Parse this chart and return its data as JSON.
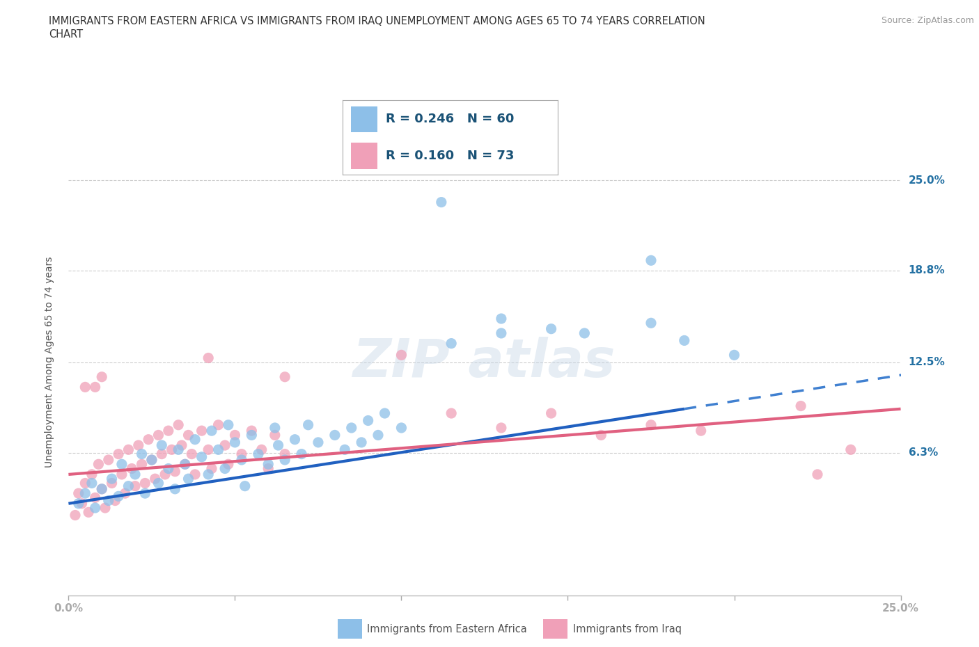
{
  "title_line1": "IMMIGRANTS FROM EASTERN AFRICA VS IMMIGRANTS FROM IRAQ UNEMPLOYMENT AMONG AGES 65 TO 74 YEARS CORRELATION",
  "title_line2": "CHART",
  "source_text": "Source: ZipAtlas.com",
  "ylabel": "Unemployment Among Ages 65 to 74 years",
  "xlim": [
    0.0,
    0.25
  ],
  "ylim": [
    -0.035,
    0.285
  ],
  "xticks": [
    0.0,
    0.05,
    0.1,
    0.15,
    0.2,
    0.25
  ],
  "xticklabels": [
    "0.0%",
    "",
    "",
    "",
    "",
    "25.0%"
  ],
  "ytick_positions": [
    0.063,
    0.125,
    0.188,
    0.25
  ],
  "ytick_labels": [
    "6.3%",
    "12.5%",
    "18.8%",
    "25.0%"
  ],
  "color_blue": "#8dbfe8",
  "color_pink": "#f0a0b8",
  "R_blue": 0.246,
  "N_blue": 60,
  "R_pink": 0.16,
  "N_pink": 73,
  "legend_text_color": "#1a5276",
  "axis_label_color": "#2471a3",
  "blue_line": {
    "x0": 0.0,
    "y0": 0.028,
    "x1": 0.185,
    "y1": 0.093
  },
  "blue_line_solid_end": 0.185,
  "blue_line_dashed_end": 0.255,
  "blue_line_y_at_dashed_end": 0.118,
  "pink_line": {
    "x0": 0.0,
    "y0": 0.048,
    "x1": 0.25,
    "y1": 0.093
  },
  "background_color": "#ffffff",
  "grid_color": "#cccccc",
  "blue_scatter": [
    [
      0.003,
      0.028
    ],
    [
      0.005,
      0.035
    ],
    [
      0.007,
      0.042
    ],
    [
      0.008,
      0.025
    ],
    [
      0.01,
      0.038
    ],
    [
      0.012,
      0.03
    ],
    [
      0.013,
      0.045
    ],
    [
      0.015,
      0.033
    ],
    [
      0.016,
      0.055
    ],
    [
      0.018,
      0.04
    ],
    [
      0.02,
      0.048
    ],
    [
      0.022,
      0.062
    ],
    [
      0.023,
      0.035
    ],
    [
      0.025,
      0.058
    ],
    [
      0.027,
      0.042
    ],
    [
      0.028,
      0.068
    ],
    [
      0.03,
      0.052
    ],
    [
      0.032,
      0.038
    ],
    [
      0.033,
      0.065
    ],
    [
      0.035,
      0.055
    ],
    [
      0.036,
      0.045
    ],
    [
      0.038,
      0.072
    ],
    [
      0.04,
      0.06
    ],
    [
      0.042,
      0.048
    ],
    [
      0.043,
      0.078
    ],
    [
      0.045,
      0.065
    ],
    [
      0.047,
      0.052
    ],
    [
      0.048,
      0.082
    ],
    [
      0.05,
      0.07
    ],
    [
      0.052,
      0.058
    ],
    [
      0.053,
      0.04
    ],
    [
      0.055,
      0.075
    ],
    [
      0.057,
      0.062
    ],
    [
      0.06,
      0.055
    ],
    [
      0.062,
      0.08
    ],
    [
      0.063,
      0.068
    ],
    [
      0.065,
      0.058
    ],
    [
      0.068,
      0.072
    ],
    [
      0.07,
      0.062
    ],
    [
      0.072,
      0.082
    ],
    [
      0.075,
      0.07
    ],
    [
      0.08,
      0.075
    ],
    [
      0.083,
      0.065
    ],
    [
      0.085,
      0.08
    ],
    [
      0.088,
      0.07
    ],
    [
      0.09,
      0.085
    ],
    [
      0.093,
      0.075
    ],
    [
      0.095,
      0.09
    ],
    [
      0.1,
      0.08
    ],
    [
      0.115,
      0.138
    ],
    [
      0.13,
      0.145
    ],
    [
      0.155,
      0.145
    ],
    [
      0.175,
      0.152
    ],
    [
      0.185,
      0.14
    ],
    [
      0.112,
      0.235
    ],
    [
      0.175,
      0.195
    ],
    [
      0.13,
      0.155
    ],
    [
      0.145,
      0.148
    ],
    [
      0.2,
      0.13
    ]
  ],
  "pink_scatter": [
    [
      0.002,
      0.02
    ],
    [
      0.003,
      0.035
    ],
    [
      0.004,
      0.028
    ],
    [
      0.005,
      0.042
    ],
    [
      0.006,
      0.022
    ],
    [
      0.007,
      0.048
    ],
    [
      0.008,
      0.032
    ],
    [
      0.009,
      0.055
    ],
    [
      0.01,
      0.038
    ],
    [
      0.011,
      0.025
    ],
    [
      0.012,
      0.058
    ],
    [
      0.013,
      0.042
    ],
    [
      0.014,
      0.03
    ],
    [
      0.015,
      0.062
    ],
    [
      0.016,
      0.048
    ],
    [
      0.017,
      0.035
    ],
    [
      0.018,
      0.065
    ],
    [
      0.019,
      0.052
    ],
    [
      0.02,
      0.04
    ],
    [
      0.021,
      0.068
    ],
    [
      0.022,
      0.055
    ],
    [
      0.023,
      0.042
    ],
    [
      0.024,
      0.072
    ],
    [
      0.025,
      0.058
    ],
    [
      0.026,
      0.045
    ],
    [
      0.027,
      0.075
    ],
    [
      0.028,
      0.062
    ],
    [
      0.029,
      0.048
    ],
    [
      0.03,
      0.078
    ],
    [
      0.031,
      0.065
    ],
    [
      0.032,
      0.05
    ],
    [
      0.033,
      0.082
    ],
    [
      0.034,
      0.068
    ],
    [
      0.035,
      0.055
    ],
    [
      0.036,
      0.075
    ],
    [
      0.037,
      0.062
    ],
    [
      0.038,
      0.048
    ],
    [
      0.04,
      0.078
    ],
    [
      0.042,
      0.065
    ],
    [
      0.043,
      0.052
    ],
    [
      0.045,
      0.082
    ],
    [
      0.047,
      0.068
    ],
    [
      0.048,
      0.055
    ],
    [
      0.05,
      0.075
    ],
    [
      0.052,
      0.062
    ],
    [
      0.055,
      0.078
    ],
    [
      0.058,
      0.065
    ],
    [
      0.06,
      0.052
    ],
    [
      0.062,
      0.075
    ],
    [
      0.065,
      0.062
    ],
    [
      0.005,
      0.108
    ],
    [
      0.008,
      0.108
    ],
    [
      0.01,
      0.115
    ],
    [
      0.042,
      0.128
    ],
    [
      0.065,
      0.115
    ],
    [
      0.1,
      0.13
    ],
    [
      0.115,
      0.09
    ],
    [
      0.13,
      0.08
    ],
    [
      0.145,
      0.09
    ],
    [
      0.16,
      0.075
    ],
    [
      0.175,
      0.082
    ],
    [
      0.19,
      0.078
    ],
    [
      0.225,
      0.048
    ],
    [
      0.22,
      0.095
    ],
    [
      0.235,
      0.065
    ]
  ]
}
